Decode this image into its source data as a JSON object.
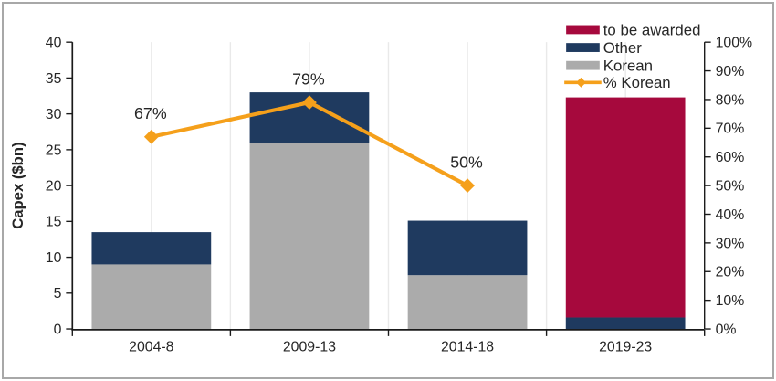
{
  "window": {
    "background": "#ffffff",
    "frame_border": "#a8a8a8"
  },
  "colors": {
    "to_be_awarded": "#A6093D",
    "other": "#1F3A5F",
    "korean": "#ABABAB",
    "pct_korean": "#F5A01B",
    "gridline": "#E9E9E9",
    "axis": "#1a1a1a",
    "text": "#262626"
  },
  "chart_data": {
    "type": "bar",
    "subtype": "stacked-column-with-line",
    "title": "",
    "xlabel": "",
    "ylabel": "Capex ($bn)",
    "categories": [
      "2004-8",
      "2009-13",
      "2014-18",
      "2019-23"
    ],
    "bar_series": [
      {
        "name": "Korean",
        "color_key": "korean",
        "values": [
          9.0,
          26.0,
          7.5,
          0
        ]
      },
      {
        "name": "Other",
        "color_key": "other",
        "values": [
          4.5,
          7.0,
          7.6,
          1.6
        ]
      },
      {
        "name": "to be awarded",
        "color_key": "to_be_awarded",
        "values": [
          0,
          0,
          0,
          30.7
        ]
      }
    ],
    "bar_totals": [
      13.5,
      33.0,
      15.1,
      32.3
    ],
    "line_series": {
      "name": "% Korean",
      "color_key": "pct_korean",
      "axis": "right",
      "values": [
        67,
        79,
        50,
        null
      ],
      "labels": [
        "67%",
        "79%",
        "50%",
        ""
      ]
    },
    "left_axis": {
      "min": 0,
      "max": 40,
      "step": 5,
      "tick_labels": [
        "0",
        "5",
        "10",
        "15",
        "20",
        "25",
        "30",
        "35",
        "40"
      ]
    },
    "right_axis": {
      "min": 0,
      "max": 100,
      "step": 10,
      "tick_labels": [
        "0%",
        "10%",
        "20%",
        "30%",
        "40%",
        "50%",
        "60%",
        "70%",
        "80%",
        "90%",
        "100%"
      ]
    },
    "legend": {
      "position": "top-right",
      "entries": [
        {
          "label": "to be awarded",
          "color_key": "to_be_awarded",
          "type": "box"
        },
        {
          "label": "Other",
          "color_key": "other",
          "type": "box"
        },
        {
          "label": "Korean",
          "color_key": "korean",
          "type": "box"
        },
        {
          "label": "% Korean",
          "color_key": "pct_korean",
          "type": "line-diamond"
        }
      ]
    },
    "gridlines": {
      "vertical": true,
      "horizontal": false,
      "vertical_divisions": 8
    }
  }
}
